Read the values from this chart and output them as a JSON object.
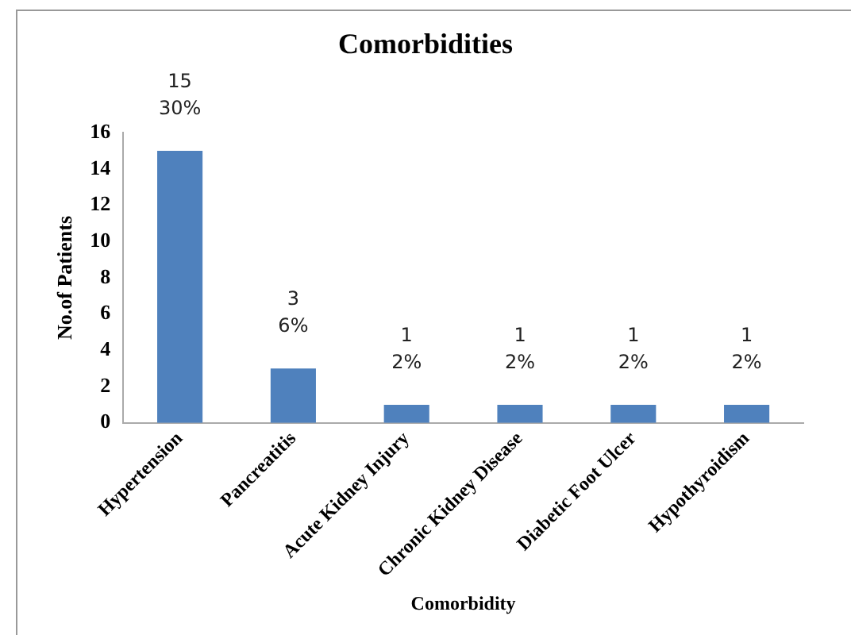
{
  "chart_data": {
    "type": "bar",
    "title": "Comorbidities",
    "xlabel": "Comorbidity",
    "ylabel": "No.of Patients",
    "categories": [
      "Hypertension",
      "Pancreatitis",
      "Acute Kidney Injury",
      "Chronic Kidney Disease",
      "Diabetic Foot Ulcer",
      "Hypothyroidism"
    ],
    "values": [
      15,
      3,
      1,
      1,
      1,
      1
    ],
    "color": "#4f81bd",
    "value_labels": [
      "15\n30%",
      "3\n6%",
      "1\n2%",
      "1\n2%",
      "1\n2%",
      "1\n2%"
    ],
    "ylim": [
      0,
      16
    ],
    "yticks": [
      0,
      2,
      4,
      6,
      8,
      10,
      12,
      14,
      16
    ],
    "grid": false,
    "legend": false
  }
}
